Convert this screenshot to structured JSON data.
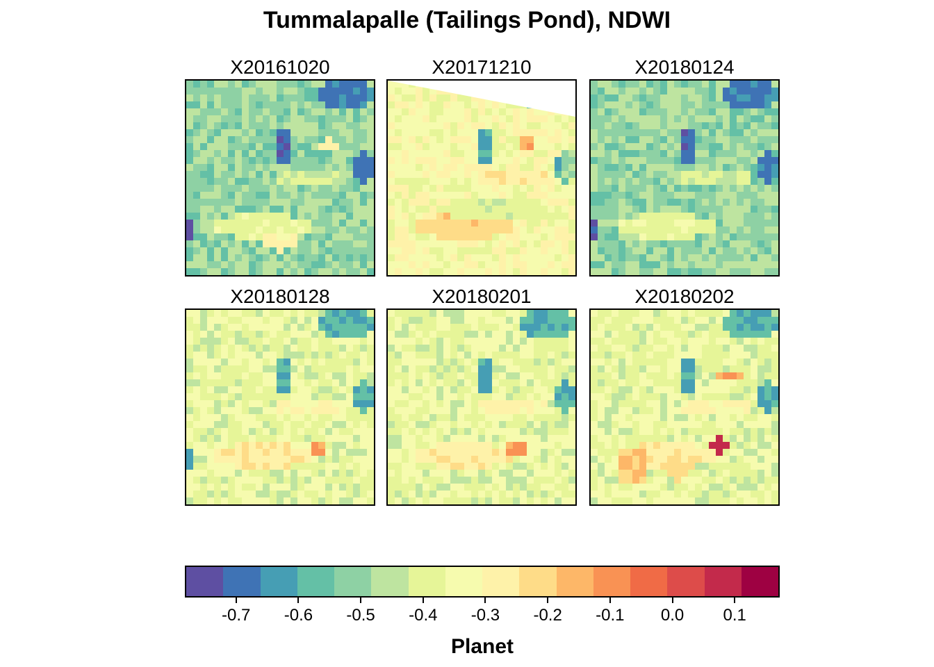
{
  "chart_data": {
    "type": "heatmap",
    "title": "Tummalapalle (Tailings Pond), NDWI",
    "panels": [
      {
        "name": "X20161020",
        "dominant_value": -0.5
      },
      {
        "name": "X20171210",
        "dominant_value": -0.33
      },
      {
        "name": "X20180124",
        "dominant_value": -0.5
      },
      {
        "name": "X20180128",
        "dominant_value": -0.38
      },
      {
        "name": "X20180201",
        "dominant_value": -0.38
      },
      {
        "name": "X20180202",
        "dominant_value": -0.38
      }
    ],
    "legend": {
      "title": "Planet",
      "range": [
        -0.78,
        0.17
      ],
      "breaks": [
        -0.78,
        -0.7207,
        -0.6613,
        -0.602,
        -0.5427,
        -0.4833,
        -0.424,
        -0.3647,
        -0.3053,
        -0.246,
        -0.1867,
        -0.1273,
        -0.068,
        -0.0087,
        0.0507,
        0.11,
        0.17
      ],
      "colors": [
        "#5E4FA2",
        "#3F73B5",
        "#469EB4",
        "#64C0A6",
        "#8ED1A4",
        "#BEE4A0",
        "#E6F598",
        "#F6FBAE",
        "#FEF2A9",
        "#FEDC88",
        "#FDB768",
        "#F99254",
        "#F06B46",
        "#DD4C4A",
        "#C32A4B",
        "#9E0142"
      ],
      "ticks": [
        -0.7,
        -0.6,
        -0.5,
        -0.4,
        -0.3,
        -0.2,
        -0.1,
        0.0,
        0.1
      ],
      "tick_labels": [
        "-0.7",
        "-0.6",
        "-0.5",
        "-0.4",
        "-0.3",
        "-0.2",
        "-0.1",
        "0.0",
        "0.1"
      ]
    }
  }
}
